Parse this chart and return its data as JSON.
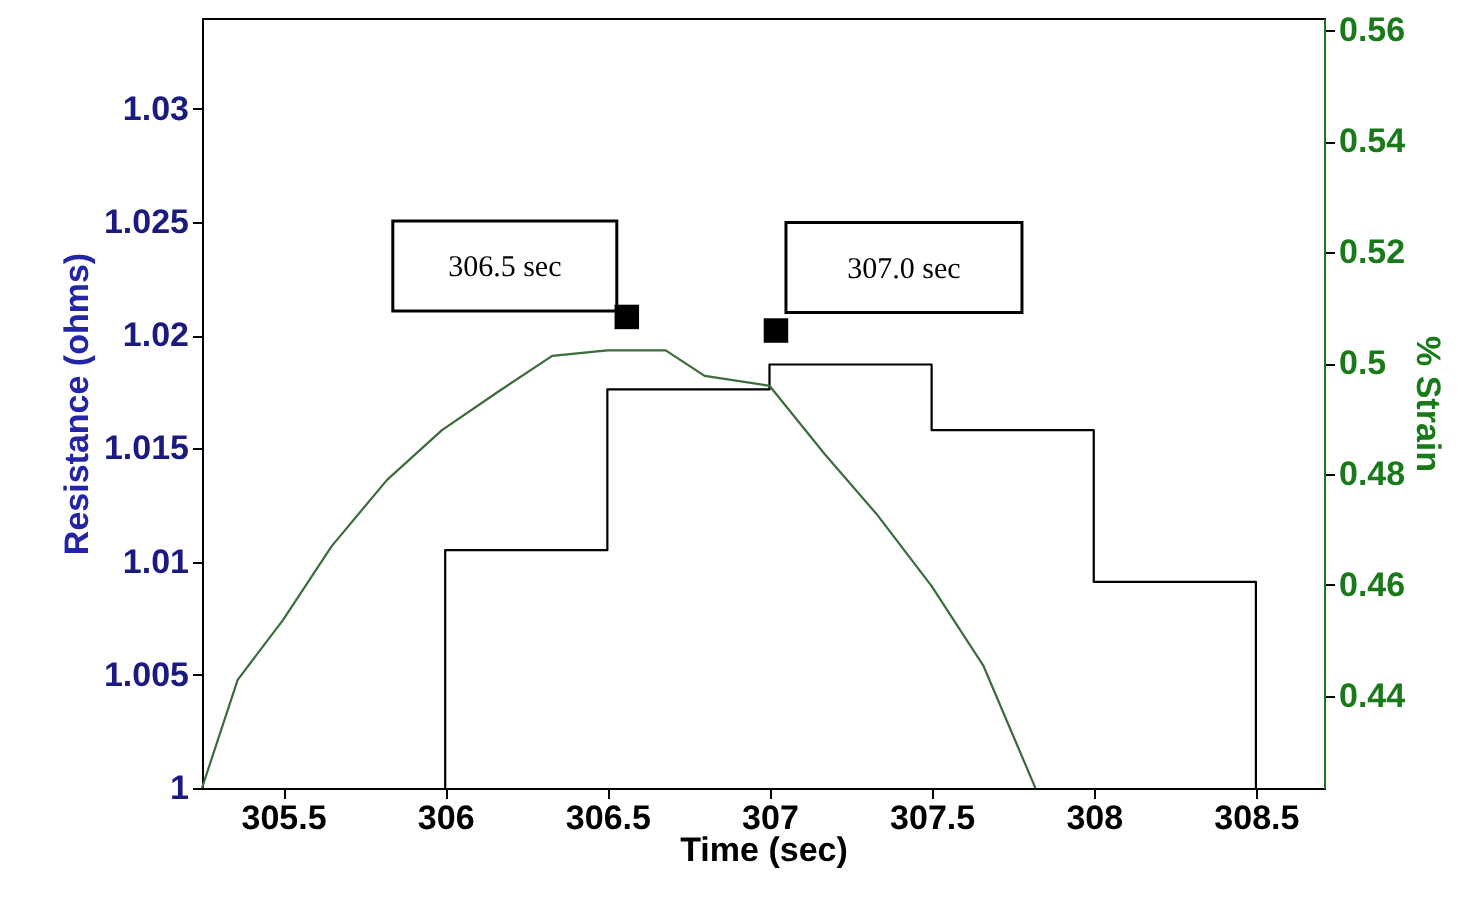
{
  "chart_data": {
    "type": "line",
    "xlabel": "Time (sec)",
    "ylabel": "Resistance (ohms)",
    "y2label": "% Strain",
    "xlim": [
      305.25,
      308.71
    ],
    "xticks": [
      305.5,
      306,
      306.5,
      307,
      307.5,
      308,
      308.5
    ],
    "ylim": [
      1,
      1.034
    ],
    "yticks": [
      1,
      1.005,
      1.01,
      1.015,
      1.02,
      1.025,
      1.03
    ],
    "y2lim": [
      0.4234,
      0.5622
    ],
    "y2ticks": [
      0.44,
      0.46,
      0.48,
      0.5,
      0.52,
      0.54,
      0.56
    ],
    "series": [
      {
        "color": "#000000",
        "x": [
          306,
          306,
          306.5,
          306.5,
          307,
          307,
          307.5,
          307.5,
          308,
          308,
          308.5,
          308.5
        ],
        "values": [
          1.0,
          1.0105,
          1.0105,
          1.0176,
          1.0176,
          1.0187,
          1.0187,
          1.0158,
          1.0158,
          1.0091,
          1.0091,
          1.0
        ]
      },
      {
        "color": "#3c6b3c",
        "axis": "y2",
        "x": [
          305.25,
          305.36,
          305.5,
          305.65,
          305.82,
          305.99,
          306.17,
          306.33,
          306.5,
          306.68,
          306.8,
          307.0,
          307.17,
          307.33,
          307.5,
          307.66,
          307.82
        ],
        "values": [
          0.4234,
          0.4429,
          0.4537,
          0.467,
          0.4789,
          0.4879,
          0.4951,
          0.5013,
          0.5023,
          0.5023,
          0.4977,
          0.4959,
          0.4836,
          0.4728,
          0.4598,
          0.4454,
          0.4234
        ]
      }
    ],
    "annotations": [
      {
        "text": "306.5 sec",
        "x": 306.56,
        "y": 1.0208
      },
      {
        "text": "307.0 sec",
        "x": 307.02,
        "y": 1.0202
      }
    ]
  }
}
